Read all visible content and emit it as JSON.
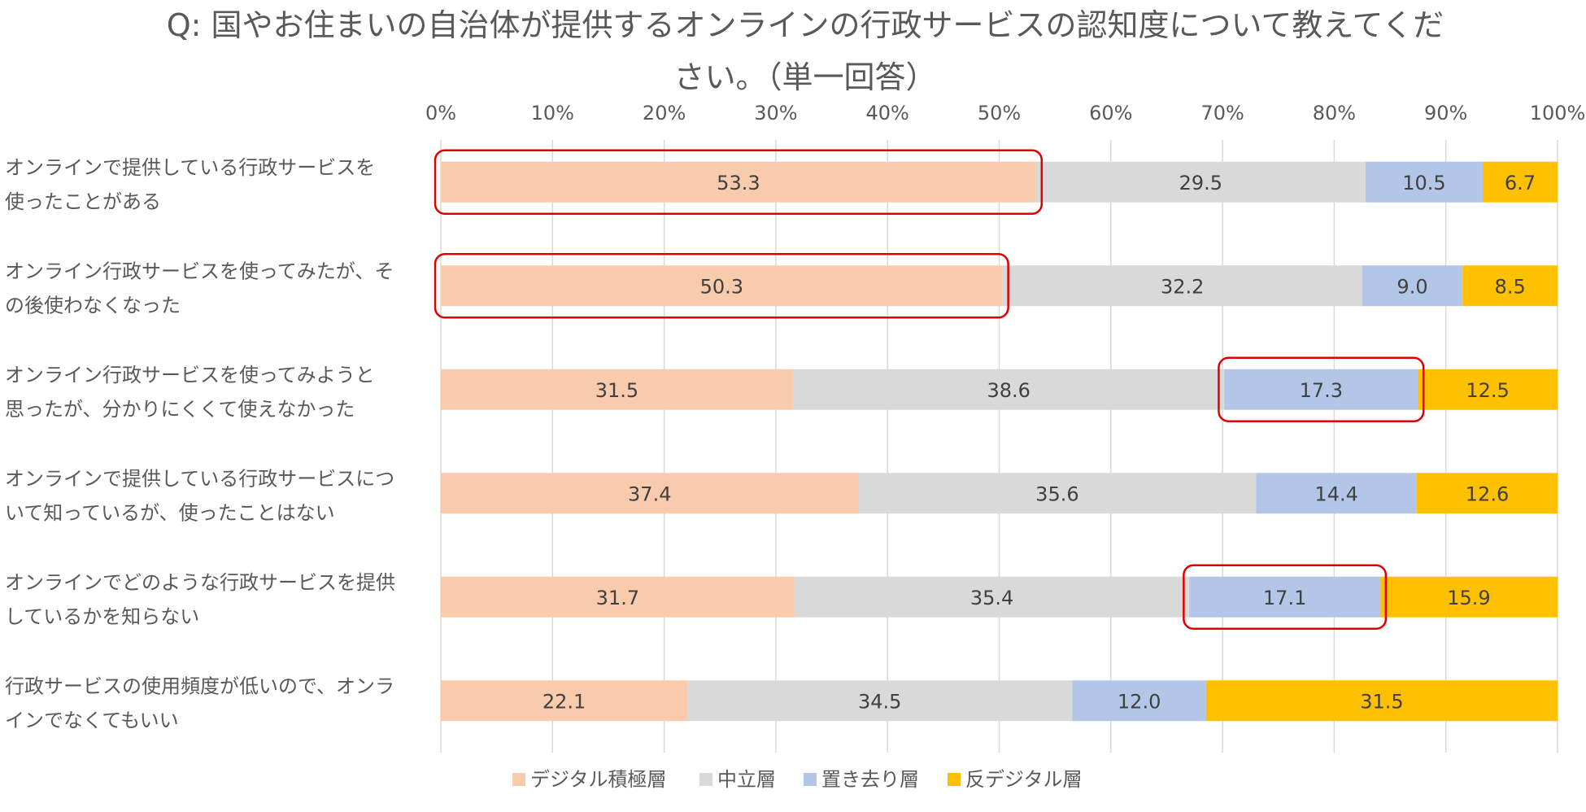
{
  "chart_data": {
    "type": "bar",
    "orientation": "horizontal",
    "stacked": "percent",
    "title_lines": [
      "Q: 国やお住まいの自治体が提供するオンラインの行政サービスの認知度について教えてくだ",
      "さい。（単一回答）"
    ],
    "xticks": [
      "0%",
      "10%",
      "20%",
      "30%",
      "40%",
      "50%",
      "60%",
      "70%",
      "80%",
      "90%",
      "100%"
    ],
    "xlim": [
      0,
      100
    ],
    "grid": true,
    "legend_position": "bottom",
    "categories": [
      [
        "オンラインで提供している行政サービスを",
        "使ったことがある"
      ],
      [
        "オンライン行政サービスを使ってみたが、そ",
        "の後使わなくなった"
      ],
      [
        "オンライン行政サービスを使ってみようと",
        "思ったが、分かりにくくて使えなかった"
      ],
      [
        "オンラインで提供している行政サービスにつ",
        "いて知っているが、使ったことはない"
      ],
      [
        "オンラインでどのような行政サービスを提供",
        "しているかを知らない"
      ],
      [
        "行政サービスの使用頻度が低いので、オンラ",
        "インでなくてもいい"
      ]
    ],
    "series": [
      {
        "name": "デジタル積極層",
        "color": "#F8CBAD",
        "values": [
          53.3,
          50.3,
          31.5,
          37.4,
          31.7,
          22.1
        ]
      },
      {
        "name": "中立層",
        "color": "#D9D9D9",
        "values": [
          29.5,
          32.2,
          38.6,
          35.6,
          35.4,
          34.5
        ]
      },
      {
        "name": "置き去り層",
        "color": "#B4C6E7",
        "values": [
          10.5,
          9.0,
          17.3,
          14.4,
          17.1,
          12.0
        ]
      },
      {
        "name": "反デジタル層",
        "color": "#FFC000",
        "values": [
          6.7,
          8.5,
          12.5,
          12.6,
          15.9,
          31.5
        ]
      }
    ],
    "value_labels": [
      [
        "53.3",
        "29.5",
        "10.5",
        "6.7"
      ],
      [
        "50.3",
        "32.2",
        "9.0",
        "8.5"
      ],
      [
        "31.5",
        "38.6",
        "17.3",
        "12.5"
      ],
      [
        "37.4",
        "35.6",
        "14.4",
        "12.6"
      ],
      [
        "31.7",
        "35.4",
        "17.1",
        "15.9"
      ],
      [
        "22.1",
        "34.5",
        "12.0",
        "31.5"
      ]
    ],
    "highlights": [
      {
        "category_index": 0,
        "series_index": 0
      },
      {
        "category_index": 1,
        "series_index": 0
      },
      {
        "category_index": 2,
        "series_index": 2
      },
      {
        "category_index": 4,
        "series_index": 2
      }
    ],
    "highlight_color": "#E00000",
    "gridline_color": "#D9D9D9",
    "text_color": "#595959"
  }
}
